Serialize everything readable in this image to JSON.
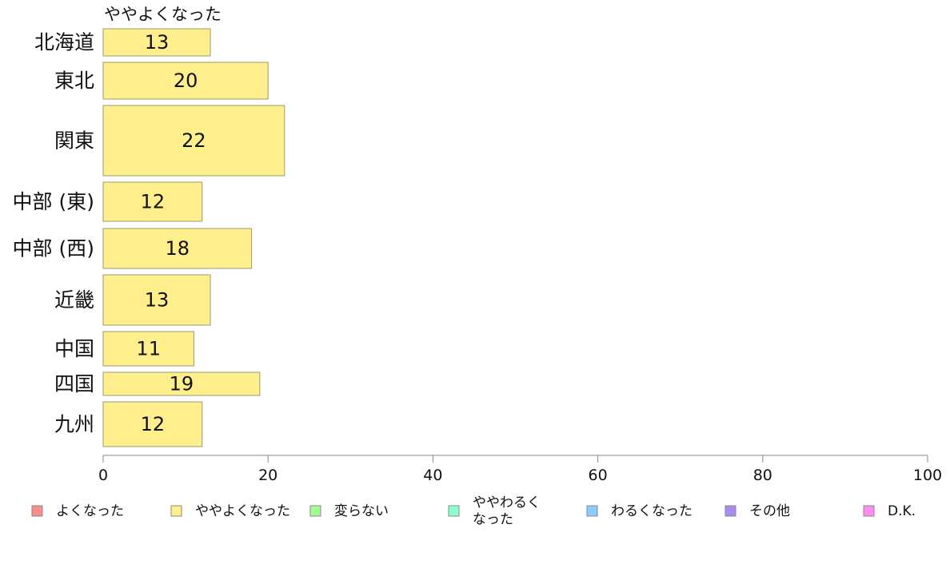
{
  "chart_data": {
    "type": "bar",
    "orientation": "horizontal",
    "series_title": "ややよくなった",
    "categories": [
      "北海道",
      "東北",
      "関東",
      "中部 (東)",
      "中部 (西)",
      "近畿",
      "中国",
      "四国",
      "九州"
    ],
    "series": [
      {
        "name": "ややよくなった",
        "values": [
          13,
          20,
          22,
          12,
          18,
          13,
          11,
          19,
          12
        ],
        "color": "#ffee8c"
      }
    ],
    "xlim": [
      0,
      100
    ],
    "xticks": [
      0,
      20,
      40,
      60,
      80,
      100
    ],
    "xlabel": "",
    "ylabel": "",
    "grid": false,
    "legend": {
      "position": "bottom",
      "items": [
        {
          "label": "よくなった",
          "color": "#ff8c8c"
        },
        {
          "label": "ややよくなった",
          "color": "#ffee8c"
        },
        {
          "label": "変らない",
          "color": "#a0ff8c"
        },
        {
          "label": "ややわるく\nなった",
          "color": "#8cffcc"
        },
        {
          "label": "わるくなった",
          "color": "#8cccff"
        },
        {
          "label": "その他",
          "color": "#a88cf0"
        },
        {
          "label": "D.K.",
          "color": "#ff8cf0"
        }
      ]
    }
  }
}
